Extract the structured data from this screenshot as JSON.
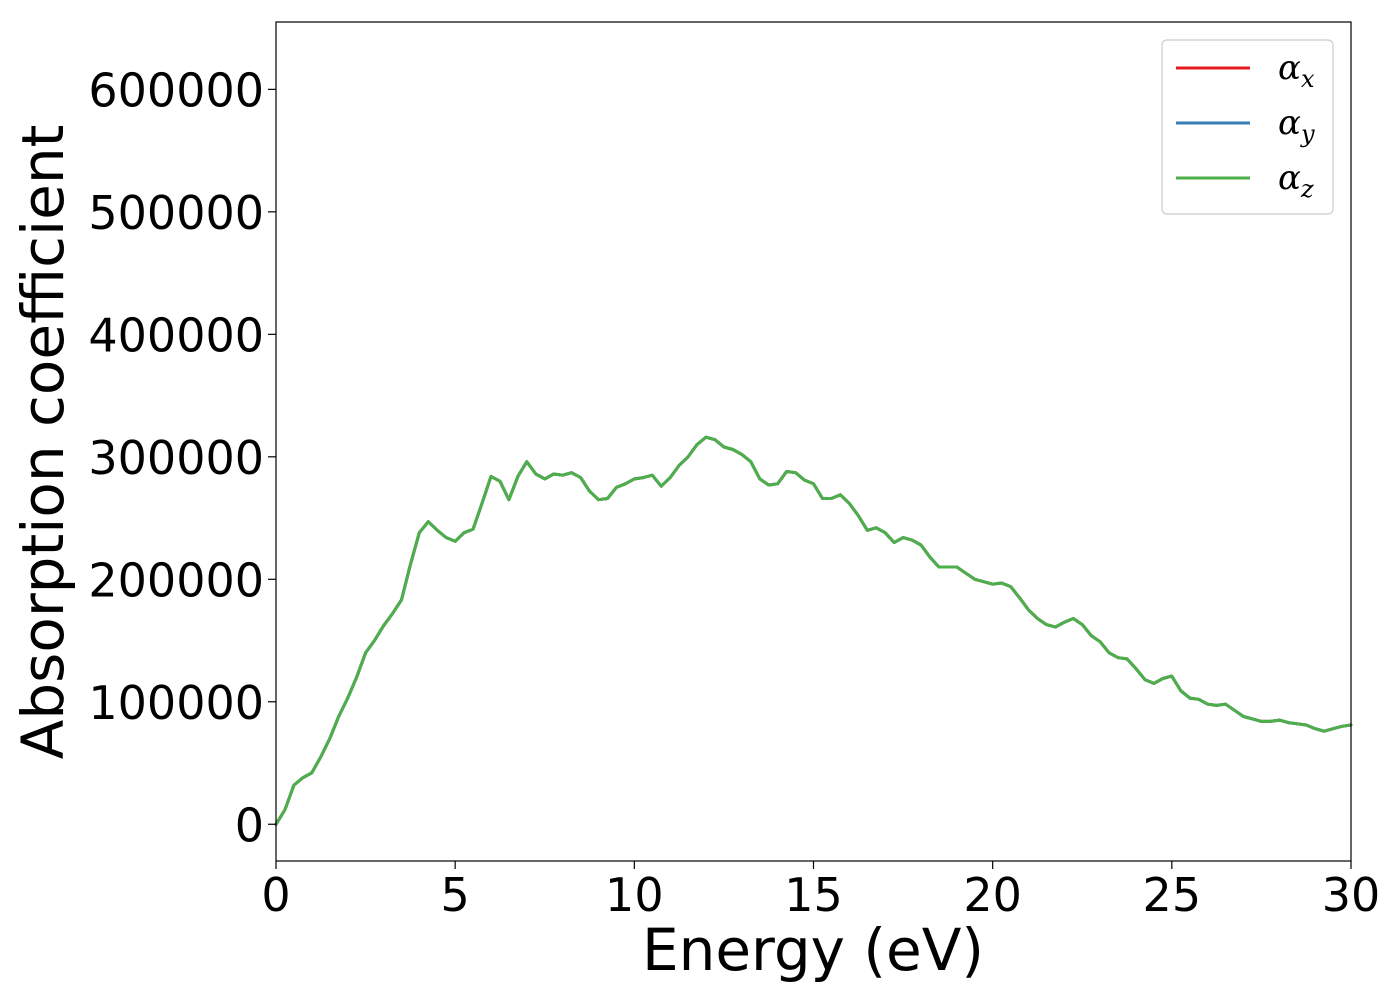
{
  "chart_data": {
    "type": "line",
    "title": "",
    "xlabel": "Energy (eV)",
    "ylabel": "Absorption coefficient",
    "xlim": [
      0,
      30
    ],
    "ylim": [
      -30000,
      655000
    ],
    "xticks": [
      0,
      5,
      10,
      15,
      20,
      25,
      30
    ],
    "xtick_labels": [
      "0",
      "5",
      "10",
      "15",
      "20",
      "25",
      "30"
    ],
    "yticks": [
      0,
      100000,
      200000,
      300000,
      400000,
      500000,
      600000
    ],
    "ytick_labels": [
      "0",
      "100000",
      "200000",
      "300000",
      "400000",
      "500000",
      "600000"
    ],
    "grid": false,
    "legend_position": "top-right",
    "x": [
      0,
      0.25,
      0.5,
      0.75,
      1.0,
      1.25,
      1.5,
      1.75,
      2.0,
      2.25,
      2.5,
      2.75,
      3.0,
      3.25,
      3.5,
      3.75,
      4.0,
      4.25,
      4.5,
      4.75,
      5.0,
      5.25,
      5.5,
      5.75,
      6.0,
      6.25,
      6.5,
      6.75,
      7.0,
      7.25,
      7.5,
      7.75,
      8.0,
      8.25,
      8.5,
      8.75,
      9.0,
      9.25,
      9.5,
      9.75,
      10.0,
      10.25,
      10.5,
      10.75,
      11.0,
      11.25,
      11.5,
      11.75,
      12.0,
      12.25,
      12.5,
      12.75,
      13.0,
      13.25,
      13.5,
      13.75,
      14.0,
      14.25,
      14.5,
      14.75,
      15.0,
      15.25,
      15.5,
      15.75,
      16.0,
      16.25,
      16.5,
      16.75,
      17.0,
      17.25,
      17.5,
      17.75,
      18.0,
      18.25,
      18.5,
      18.75,
      19.0,
      19.25,
      19.5,
      19.75,
      20.0,
      20.25,
      20.5,
      20.75,
      21.0,
      21.25,
      21.5,
      21.75,
      22.0,
      22.25,
      22.5,
      22.75,
      23.0,
      23.25,
      23.5,
      23.75,
      24.0,
      24.25,
      24.5,
      24.75,
      25.0,
      25.25,
      25.5,
      25.75,
      26.0,
      26.25,
      26.5,
      26.75,
      27.0,
      27.25,
      27.5,
      27.75,
      28.0,
      28.25,
      28.5,
      28.75,
      29.0,
      29.25,
      29.5,
      29.75,
      30.0
    ],
    "series": [
      {
        "name": "α_x",
        "label_main": "α",
        "label_sub": "x",
        "color": "#e41a1c",
        "values": [
          0,
          12000,
          32000,
          38000,
          42000,
          55000,
          70000,
          88000,
          103000,
          120000,
          140000,
          150000,
          162000,
          172000,
          183000,
          212000,
          238000,
          247000,
          240000,
          234000,
          231000,
          238000,
          241000,
          262000,
          284000,
          280000,
          265000,
          284000,
          296000,
          286000,
          282000,
          286000,
          285000,
          287000,
          283000,
          272000,
          265000,
          266000,
          275000,
          278000,
          282000,
          283000,
          285000,
          276000,
          283000,
          293000,
          300000,
          310000,
          316000,
          314000,
          308000,
          306000,
          302000,
          296000,
          282000,
          277000,
          278000,
          288000,
          287000,
          281000,
          278000,
          266000,
          266000,
          269000,
          262000,
          252000,
          240000,
          242000,
          238000,
          230000,
          234000,
          232000,
          228000,
          218000,
          210000,
          210000,
          210000,
          205000,
          200000,
          198000,
          196000,
          197000,
          194000,
          185000,
          175000,
          168000,
          163000,
          161000,
          165000,
          168000,
          163000,
          154000,
          149000,
          140000,
          136000,
          135000,
          127000,
          118000,
          115000,
          119000,
          121000,
          109000,
          103000,
          102000,
          98000,
          97000,
          98000,
          93000,
          88000,
          86000,
          84000,
          84000,
          85000,
          83000,
          82000,
          81000,
          78000,
          76000,
          78000,
          80000,
          81000
        ]
      },
      {
        "name": "α_y",
        "label_main": "α",
        "label_sub": "y",
        "color": "#377eb8",
        "values": [
          0,
          12000,
          32000,
          38000,
          42000,
          55000,
          70000,
          88000,
          103000,
          120000,
          140000,
          150000,
          162000,
          172000,
          183000,
          212000,
          238000,
          247000,
          240000,
          234000,
          231000,
          238000,
          241000,
          262000,
          284000,
          280000,
          265000,
          284000,
          296000,
          286000,
          282000,
          286000,
          285000,
          287000,
          283000,
          272000,
          265000,
          266000,
          275000,
          278000,
          282000,
          283000,
          285000,
          276000,
          283000,
          293000,
          300000,
          310000,
          316000,
          314000,
          308000,
          306000,
          302000,
          296000,
          282000,
          277000,
          278000,
          288000,
          287000,
          281000,
          278000,
          266000,
          266000,
          269000,
          262000,
          252000,
          240000,
          242000,
          238000,
          230000,
          234000,
          232000,
          228000,
          218000,
          210000,
          210000,
          210000,
          205000,
          200000,
          198000,
          196000,
          197000,
          194000,
          185000,
          175000,
          168000,
          163000,
          161000,
          165000,
          168000,
          163000,
          154000,
          149000,
          140000,
          136000,
          135000,
          127000,
          118000,
          115000,
          119000,
          121000,
          109000,
          103000,
          102000,
          98000,
          97000,
          98000,
          93000,
          88000,
          86000,
          84000,
          84000,
          85000,
          83000,
          82000,
          81000,
          78000,
          76000,
          78000,
          80000,
          81000
        ]
      },
      {
        "name": "α_z",
        "label_main": "α",
        "label_sub": "z",
        "color": "#4daf4a",
        "values": [
          0,
          12000,
          32000,
          38000,
          42000,
          55000,
          70000,
          88000,
          103000,
          120000,
          140000,
          150000,
          162000,
          172000,
          183000,
          212000,
          238000,
          247000,
          240000,
          234000,
          231000,
          238000,
          241000,
          262000,
          284000,
          280000,
          265000,
          284000,
          296000,
          286000,
          282000,
          286000,
          285000,
          287000,
          283000,
          272000,
          265000,
          266000,
          275000,
          278000,
          282000,
          283000,
          285000,
          276000,
          283000,
          293000,
          300000,
          310000,
          316000,
          314000,
          308000,
          306000,
          302000,
          296000,
          282000,
          277000,
          278000,
          288000,
          287000,
          281000,
          278000,
          266000,
          266000,
          269000,
          262000,
          252000,
          240000,
          242000,
          238000,
          230000,
          234000,
          232000,
          228000,
          218000,
          210000,
          210000,
          210000,
          205000,
          200000,
          198000,
          196000,
          197000,
          194000,
          185000,
          175000,
          168000,
          163000,
          161000,
          165000,
          168000,
          163000,
          154000,
          149000,
          140000,
          136000,
          135000,
          127000,
          118000,
          115000,
          119000,
          121000,
          109000,
          103000,
          102000,
          98000,
          97000,
          98000,
          93000,
          88000,
          86000,
          84000,
          84000,
          85000,
          83000,
          82000,
          81000,
          78000,
          76000,
          78000,
          80000,
          81000
        ]
      }
    ]
  }
}
